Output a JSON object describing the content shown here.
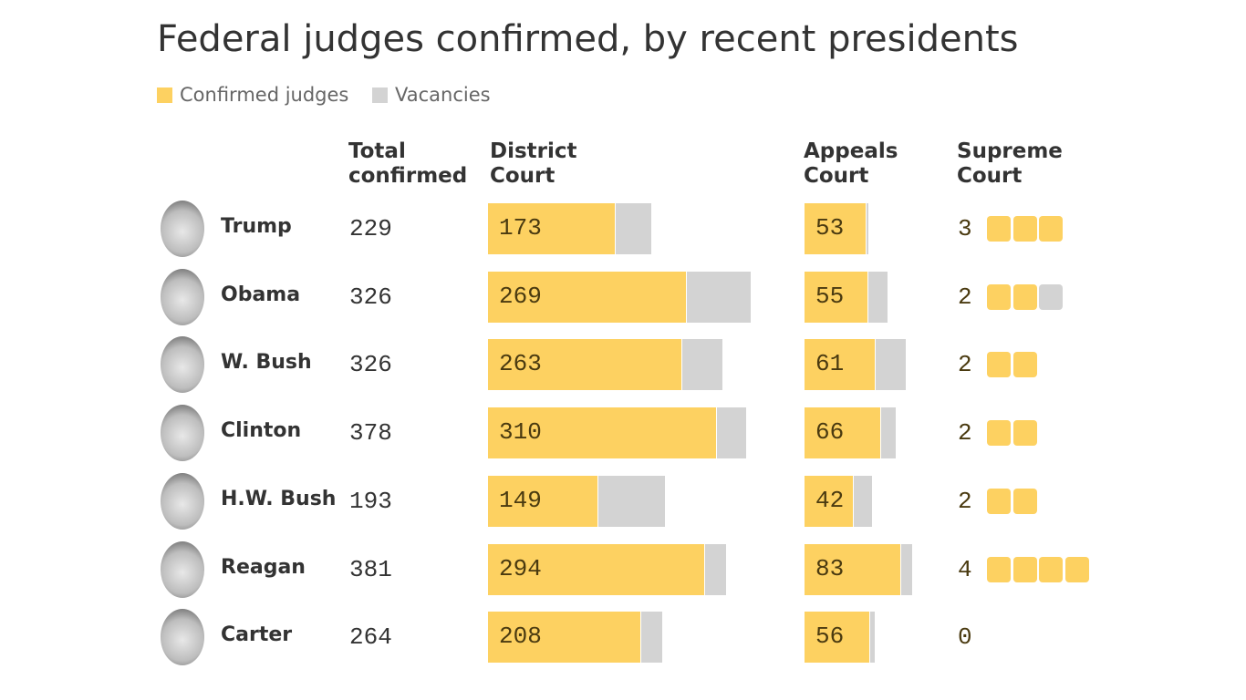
{
  "chart_data": {
    "type": "judges-table",
    "title": "Federal judges confirmed, by recent presidents",
    "columns": {
      "total": "Total confirmed",
      "district": "District Court",
      "appeals": "Appeals Court",
      "supreme": "Supreme Court"
    },
    "categories": [
      "Trump",
      "Obama",
      "W. Bush",
      "Clinton",
      "H.W. Bush",
      "Reagan",
      "Carter"
    ],
    "totals": [
      229,
      326,
      326,
      378,
      193,
      381,
      264
    ],
    "series": [
      {
        "name": "Confirmed judges",
        "color": "#fdd161",
        "district": [
          173,
          269,
          263,
          310,
          149,
          294,
          208
        ],
        "appeals": [
          53,
          55,
          61,
          66,
          42,
          83,
          56
        ],
        "supreme": [
          3,
          2,
          2,
          2,
          2,
          4,
          0
        ]
      },
      {
        "name": "Vacancies",
        "color": "#d3d3d3",
        "district": [
          48,
          86,
          54,
          40,
          91,
          28,
          28
        ],
        "appeals": [
          2,
          16,
          26,
          12,
          16,
          9,
          4
        ],
        "supreme": [
          0,
          1,
          0,
          0,
          0,
          0,
          0
        ]
      }
    ]
  }
}
